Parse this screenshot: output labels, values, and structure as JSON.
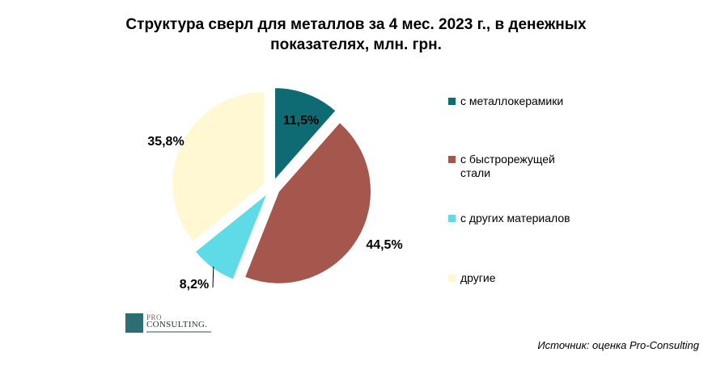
{
  "chart_data": {
    "type": "pie",
    "title_lines": [
      "Структура  сверл для металлов  за 4 мес.  2023 г., в денежных",
      "показателях,  млн. грн."
    ],
    "categories": [
      "с металлокерамики",
      "с быстрорежущей стали",
      "с других материалов",
      "другие"
    ],
    "legend_lines": [
      [
        "с металлокерамики"
      ],
      [
        "с быстрорежущей",
        "стали"
      ],
      [
        "с других материалов"
      ],
      [
        "другие"
      ]
    ],
    "values": [
      11.5,
      44.5,
      8.2,
      35.8
    ],
    "data_labels": [
      "11,5%",
      "44,5%",
      "8,2%",
      "35,8%"
    ],
    "colors": [
      "#0e6b73",
      "#a5574d",
      "#5fdbe8",
      "#fff8d2"
    ],
    "legend_position": "right",
    "exploded": true
  },
  "source": "Источник: оценка Pro-Consulting",
  "logo": {
    "top": "PRO",
    "main": "CONSULTING."
  }
}
